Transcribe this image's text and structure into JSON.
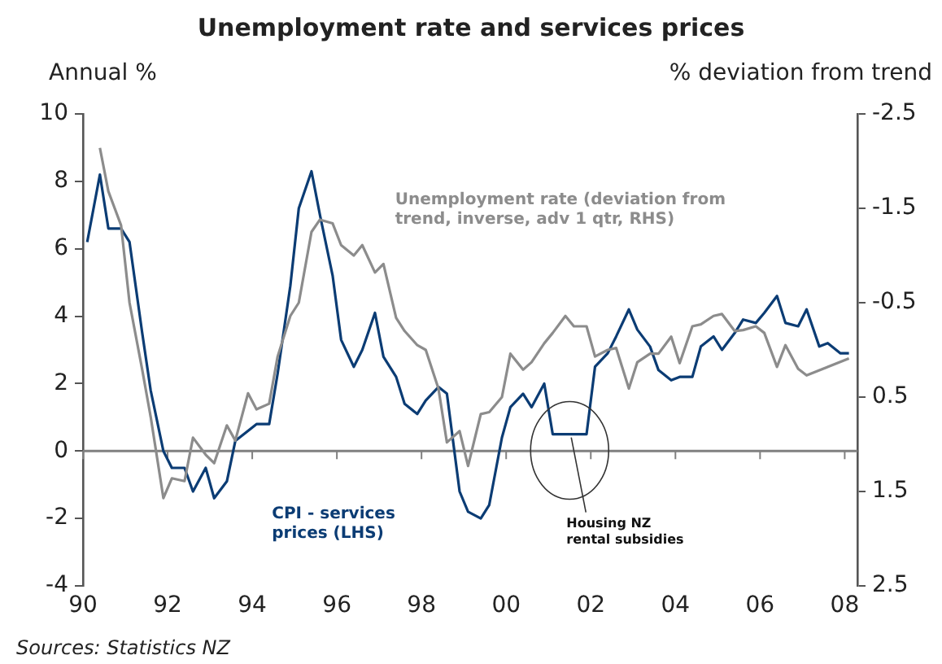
{
  "chart_data": {
    "type": "line",
    "title": "Unemployment rate and services prices",
    "ylabel": "Annual %",
    "y2label": "% deviation from trend",
    "xlim": [
      1990,
      2008.3
    ],
    "xticks": [
      {
        "value": 1990,
        "label": "90"
      },
      {
        "value": 1992,
        "label": "92"
      },
      {
        "value": 1994,
        "label": "94"
      },
      {
        "value": 1996,
        "label": "96"
      },
      {
        "value": 1998,
        "label": "98"
      },
      {
        "value": 2000,
        "label": "00"
      },
      {
        "value": 2002,
        "label": "02"
      },
      {
        "value": 2004,
        "label": "04"
      },
      {
        "value": 2006,
        "label": "06"
      },
      {
        "value": 2008,
        "label": "08"
      }
    ],
    "ylim": [
      -4,
      10
    ],
    "yticks": [
      -4,
      -2,
      0,
      2,
      4,
      6,
      8,
      10
    ],
    "y2lim": [
      2.5,
      -2.5
    ],
    "y2ticks": [
      -2.5,
      -1.5,
      -0.5,
      0.5,
      1.5,
      2.5
    ],
    "grid": false,
    "legend": false,
    "marker": "none",
    "line_style": "solid",
    "ref_lines": [
      {
        "axis": "y",
        "value": 0,
        "color": "#808080"
      }
    ],
    "series": [
      {
        "name": "Unemployment rate (deviation from trend, inverse, adv 1 qtr, RHS)",
        "color": "#8c8c8c",
        "axis": "y2",
        "x": [
          1990.4,
          1990.6,
          1990.9,
          1991.1,
          1991.4,
          1991.6,
          1991.9,
          1992.1,
          1992.4,
          1992.6,
          1992.9,
          1993.1,
          1993.4,
          1993.6,
          1993.9,
          1994.1,
          1994.4,
          1994.6,
          1994.9,
          1995.1,
          1995.4,
          1995.6,
          1995.9,
          1996.1,
          1996.4,
          1996.6,
          1996.9,
          1997.1,
          1997.4,
          1997.6,
          1997.9,
          1998.1,
          1998.4,
          1998.6,
          1998.9,
          1999.1,
          1999.4,
          1999.6,
          1999.9,
          2000.1,
          2000.4,
          2000.6,
          2000.9,
          2001.1,
          2001.4,
          2001.6,
          2001.9,
          2002.1,
          2002.4,
          2002.6,
          2002.9,
          2003.1,
          2003.4,
          2003.6,
          2003.9,
          2004.1,
          2004.4,
          2004.6,
          2004.9,
          2005.1,
          2005.4,
          2005.6,
          2005.9,
          2006.1,
          2006.4,
          2006.6,
          2006.9,
          2007.1,
          2008.1
        ],
        "values": [
          -2.14,
          -1.68,
          -1.32,
          -0.5,
          0.21,
          0.71,
          1.57,
          1.36,
          1.39,
          0.93,
          1.11,
          1.2,
          0.8,
          0.96,
          0.46,
          0.63,
          0.57,
          0.07,
          -0.36,
          -0.5,
          -1.25,
          -1.38,
          -1.34,
          -1.11,
          -1.0,
          -1.11,
          -0.82,
          -0.91,
          -0.34,
          -0.2,
          -0.05,
          0.0,
          0.41,
          0.98,
          0.86,
          1.23,
          0.68,
          0.66,
          0.5,
          0.04,
          0.21,
          0.13,
          -0.07,
          -0.18,
          -0.36,
          -0.25,
          -0.25,
          0.07,
          0.0,
          -0.02,
          0.41,
          0.13,
          0.04,
          0.04,
          -0.14,
          0.14,
          -0.25,
          -0.27,
          -0.36,
          -0.38,
          -0.2,
          -0.21,
          -0.25,
          -0.18,
          0.18,
          -0.05,
          0.2,
          0.27,
          0.09
        ]
      },
      {
        "name": "CPI - services prices (LHS)",
        "color": "#0b3c74",
        "axis": "y",
        "x": [
          1990.1,
          1990.4,
          1990.6,
          1990.9,
          1991.1,
          1991.4,
          1991.6,
          1991.9,
          1992.1,
          1992.4,
          1992.6,
          1992.9,
          1993.1,
          1993.4,
          1993.6,
          1993.9,
          1994.1,
          1994.4,
          1994.6,
          1994.9,
          1995.1,
          1995.4,
          1995.6,
          1995.9,
          1996.1,
          1996.4,
          1996.6,
          1996.9,
          1997.1,
          1997.4,
          1997.6,
          1997.9,
          1998.1,
          1998.4,
          1998.6,
          1998.9,
          1999.1,
          1999.4,
          1999.6,
          1999.9,
          2000.1,
          2000.4,
          2000.6,
          2000.9,
          2001.1,
          2001.4,
          2001.6,
          2001.9,
          2002.1,
          2002.4,
          2002.6,
          2002.9,
          2003.1,
          2003.4,
          2003.6,
          2003.9,
          2004.1,
          2004.4,
          2004.6,
          2004.9,
          2005.1,
          2005.4,
          2005.6,
          2005.9,
          2006.1,
          2006.4,
          2006.6,
          2006.9,
          2007.1,
          2007.4,
          2007.6,
          2007.9,
          2008.1
        ],
        "values": [
          6.2,
          8.2,
          6.6,
          6.6,
          6.2,
          3.5,
          1.8,
          0,
          -0.5,
          -0.5,
          -1.2,
          -0.5,
          -1.4,
          -0.9,
          0.3,
          0.6,
          0.8,
          0.8,
          2.3,
          4.9,
          7.2,
          8.3,
          7.0,
          5.2,
          3.3,
          2.5,
          3.0,
          4.1,
          2.8,
          2.2,
          1.4,
          1.1,
          1.5,
          1.9,
          1.7,
          -1.2,
          -1.8,
          -2.0,
          -1.6,
          0.4,
          1.3,
          1.7,
          1.3,
          2.0,
          0.5,
          0.5,
          0.5,
          0.5,
          2.5,
          2.9,
          3.4,
          4.2,
          3.6,
          3.1,
          2.4,
          2.1,
          2.2,
          2.2,
          3.1,
          3.4,
          3.0,
          3.5,
          3.9,
          3.8,
          4.1,
          4.6,
          3.8,
          3.7,
          4.2,
          3.1,
          3.2,
          2.9,
          2.9
        ]
      }
    ],
    "annotations": [
      {
        "text": "Housing NZ rental subsidies",
        "x": 2001.5,
        "y": 0.5
      },
      "Sources: Statistics NZ"
    ]
  }
}
